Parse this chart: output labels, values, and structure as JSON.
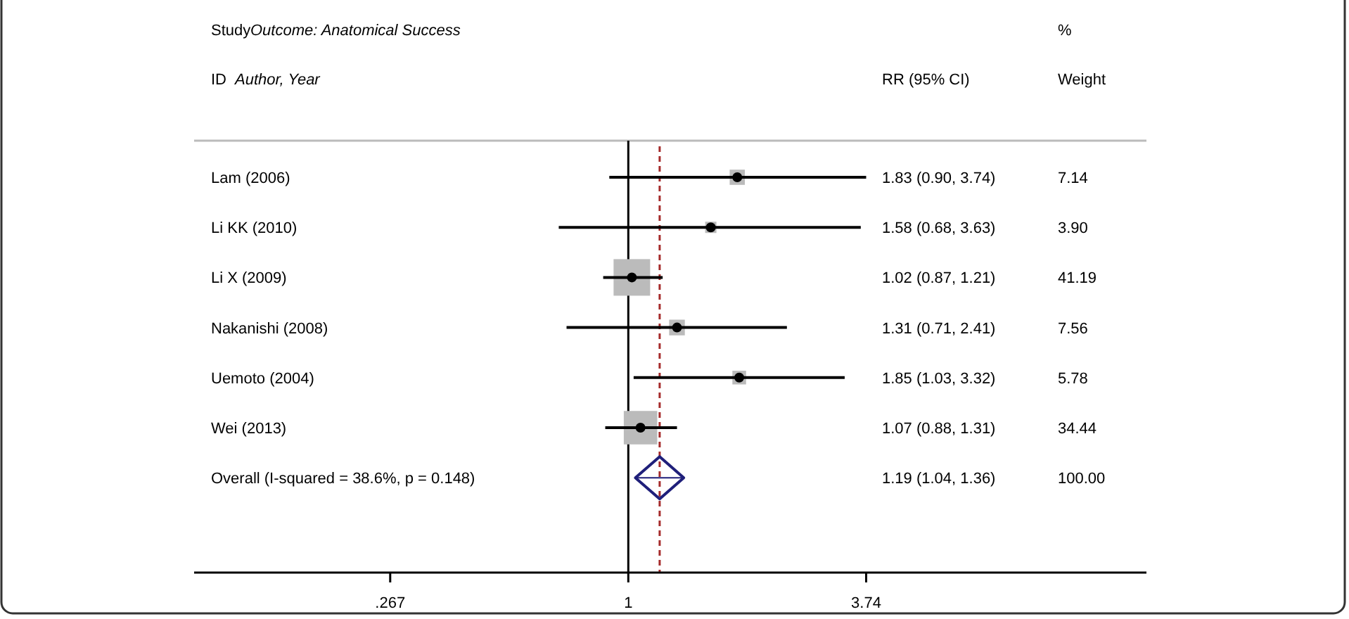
{
  "chart_data": {
    "type": "scatter",
    "orientation": "horizontal",
    "log": "x",
    "xlim": [
      0.09,
      17.7
    ],
    "xticks": [
      {
        "value": 0.267,
        "label": ".267"
      },
      1,
      3.74
    ],
    "categories": [
      "Lam (2006)",
      "Li KK (2010)",
      "Li X (2009)",
      "Nakanishi (2008)",
      "Uemoto (2004)",
      "Wei (2013)",
      "Overall  (I-squared = 38.6%, p = 0.148)"
    ],
    "series": [
      {
        "type": "bubble",
        "marker": "square",
        "color": "#bbbbbb",
        "values": [
          1.83,
          1.58,
          1.02,
          1.31,
          1.85,
          1.07,
          null
        ],
        "sizes": [
          0.173,
          0.095,
          1,
          0.184,
          0.14,
          0.836,
          null
        ]
      },
      {
        "marker": "circle",
        "color": "#000000",
        "values": [
          1.83,
          1.58,
          1.02,
          1.31,
          1.85,
          1.07,
          null
        ],
        "errors": [
          [
            0.9,
            3.74
          ],
          [
            0.68,
            3.63
          ],
          [
            0.87,
            1.21
          ],
          [
            0.71,
            2.41
          ],
          [
            1.03,
            3.32
          ],
          [
            0.88,
            1.31
          ],
          null
        ]
      },
      {
        "marker": "diamond",
        "color": "#1f1f7a",
        "values": [
          null,
          null,
          null,
          null,
          null,
          null,
          1.19
        ],
        "errors": [
          null,
          null,
          null,
          null,
          null,
          null,
          [
            1.04,
            1.36
          ]
        ]
      }
    ],
    "ref_lines": [
      {
        "axis": "x",
        "value": 1,
        "color": "#000000",
        "line_style": "solid"
      },
      {
        "axis": "x",
        "value": 1.19,
        "color": "#a52a2a",
        "line_style": "dashed"
      }
    ],
    "annotations": [
      "Study",
      "Outcome: Anatomical Success",
      "%",
      "ID",
      "Author, Year",
      "RR (95% CI)",
      "Weight",
      "1.83 (0.90, 3.74)",
      "1.58 (0.68, 3.63)",
      "1.02 (0.87, 1.21)",
      "1.31 (0.71, 2.41)",
      "1.85 (1.03, 3.32)",
      "1.07 (0.88, 1.31)",
      "1.19 (1.04, 1.36)",
      "7.14",
      "3.90",
      "41.19",
      "7.56",
      "5.78",
      "34.44",
      "100.00"
    ]
  }
}
